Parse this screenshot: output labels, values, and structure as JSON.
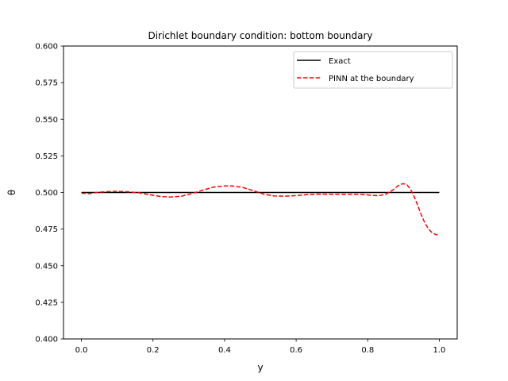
{
  "chart_data": {
    "type": "line",
    "title": "Dirichlet boundary condition: bottom boundary",
    "xlabel": "y",
    "ylabel": "θ",
    "xlim": [
      -0.05,
      1.05
    ],
    "ylim": [
      0.4,
      0.6
    ],
    "xticks": [
      0.0,
      0.2,
      0.4,
      0.6,
      0.8,
      1.0
    ],
    "xtick_labels": [
      "0.0",
      "0.2",
      "0.4",
      "0.6",
      "0.8",
      "1.0"
    ],
    "yticks": [
      0.4,
      0.425,
      0.45,
      0.475,
      0.5,
      0.525,
      0.55,
      0.575,
      0.6
    ],
    "ytick_labels": [
      "0.400",
      "0.425",
      "0.450",
      "0.475",
      "0.500",
      "0.525",
      "0.550",
      "0.575",
      "0.600"
    ],
    "grid": false,
    "legend_position": "top-right",
    "series": [
      {
        "name": "Exact",
        "color": "#000000",
        "dash": "solid",
        "x": [
          0.0,
          1.0
        ],
        "y": [
          0.5,
          0.5
        ]
      },
      {
        "name": "PINN at the boundary",
        "color": "#ff0000",
        "dash": "dashed",
        "x": [
          0.0,
          0.02,
          0.05,
          0.08,
          0.1,
          0.13,
          0.16,
          0.19,
          0.22,
          0.25,
          0.28,
          0.31,
          0.34,
          0.37,
          0.4,
          0.42,
          0.45,
          0.48,
          0.51,
          0.54,
          0.57,
          0.6,
          0.63,
          0.66,
          0.7,
          0.74,
          0.78,
          0.81,
          0.83,
          0.85,
          0.87,
          0.88,
          0.89,
          0.9,
          0.91,
          0.92,
          0.93,
          0.94,
          0.95,
          0.96,
          0.97,
          0.98,
          0.99,
          1.0
        ],
        "y": [
          0.4995,
          0.4992,
          0.5002,
          0.5007,
          0.5008,
          0.5005,
          0.4998,
          0.4985,
          0.4973,
          0.4969,
          0.4975,
          0.4993,
          0.5017,
          0.5037,
          0.5045,
          0.5045,
          0.5035,
          0.5013,
          0.4988,
          0.4976,
          0.4975,
          0.4979,
          0.4985,
          0.4989,
          0.4988,
          0.4988,
          0.4988,
          0.4981,
          0.4978,
          0.4987,
          0.5017,
          0.5037,
          0.5055,
          0.506,
          0.5052,
          0.502,
          0.497,
          0.491,
          0.4845,
          0.479,
          0.475,
          0.4725,
          0.4712,
          0.471
        ]
      }
    ]
  }
}
